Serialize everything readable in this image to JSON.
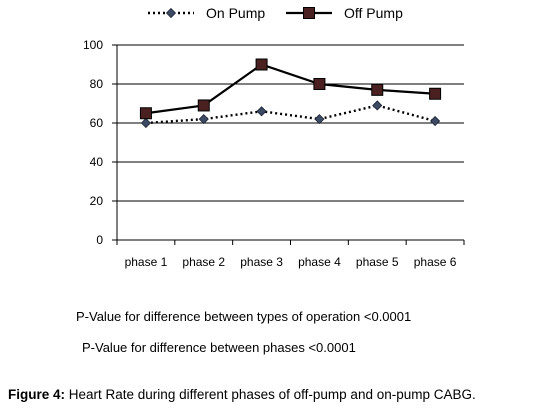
{
  "chart_data": {
    "type": "line",
    "categories": [
      "phase 1",
      "phase 2",
      "phase 3",
      "phase 4",
      "phase 5",
      "phase 6"
    ],
    "series": [
      {
        "name": "On Pump",
        "values": [
          60,
          62,
          66,
          62,
          69,
          61
        ],
        "style": "dotted",
        "marker": "diamond",
        "color": "#000000",
        "marker_color": "#3d4a63"
      },
      {
        "name": "Off Pump",
        "values": [
          65,
          69,
          90,
          80,
          77,
          75
        ],
        "style": "solid",
        "marker": "square",
        "color": "#000000",
        "marker_color": "#4a2020"
      }
    ],
    "yticks": [
      0,
      20,
      40,
      60,
      80,
      100
    ],
    "ylim": [
      0,
      100
    ],
    "grid": "horizontal",
    "legend": "top-center",
    "xlabel": "",
    "ylabel": ""
  },
  "notes": [
    "P-Value for difference between types of operation <0.0001",
    "P-Value for difference between phases <0.0001"
  ],
  "caption": {
    "label": "Figure 4:",
    "text": " Heart Rate during different phases of off-pump and on-pump CABG."
  }
}
